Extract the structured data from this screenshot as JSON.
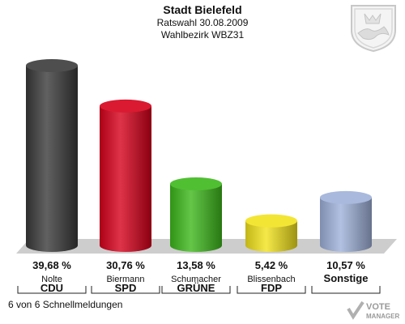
{
  "header": {
    "title": "Stadt Bielefeld",
    "subtitle": "Ratswahl 30.08.2009",
    "district": "Wahlbezirk WBZ31"
  },
  "footer": {
    "status": "6 von 6 Schnellmeldungen"
  },
  "logo": {
    "line1": "VOTE",
    "line2": "MANAGER"
  },
  "crest": {
    "icon": "coat-of-arms-icon"
  },
  "chart_data": {
    "type": "bar",
    "title": "Stadt Bielefeld",
    "categories": [
      "CDU",
      "SPD",
      "GRÜNE",
      "FDP",
      "Sonstige"
    ],
    "candidates": [
      "Nolte",
      "Biermann",
      "Schumacher",
      "Blissenbach",
      ""
    ],
    "values": [
      39.68,
      30.76,
      13.58,
      5.42,
      10.57
    ],
    "value_labels": [
      "39,68 %",
      "30,76 %",
      "13,58 %",
      "5,42 %",
      "10,57 %"
    ],
    "colors": [
      "#3a3a3a",
      "#d6001a",
      "#3db81b",
      "#f2e21c",
      "#9fb1d9"
    ],
    "ylim": [
      0,
      42
    ],
    "grid": false,
    "legend": "none"
  }
}
